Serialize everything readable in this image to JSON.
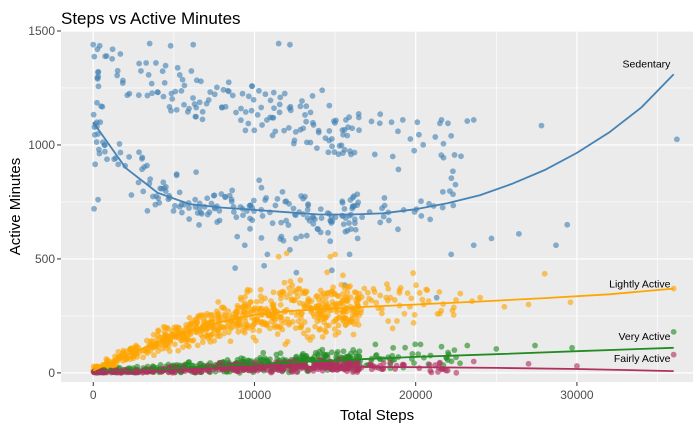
{
  "chart_data": {
    "type": "scatter",
    "title": "Steps vs Active Minutes",
    "xlabel": "Total Steps",
    "ylabel": "Active Minutes",
    "xlim": [
      -2000,
      37200
    ],
    "ylim": [
      -40,
      1500
    ],
    "xticks": [
      0,
      10000,
      20000,
      30000
    ],
    "yticks": [
      0,
      500,
      1000,
      1500
    ],
    "grid": true,
    "legend": "none",
    "series": [
      {
        "name": "Sedentary",
        "color": "#4682B4",
        "trend": [
          [
            0,
            1100
          ],
          [
            2000,
            900
          ],
          [
            4000,
            790
          ],
          [
            6000,
            740
          ],
          [
            8000,
            725
          ],
          [
            10000,
            715
          ],
          [
            12000,
            705
          ],
          [
            14000,
            695
          ],
          [
            16000,
            695
          ],
          [
            18000,
            700
          ],
          [
            20000,
            718
          ],
          [
            22000,
            745
          ],
          [
            24000,
            780
          ],
          [
            26000,
            830
          ],
          [
            28000,
            890
          ],
          [
            30000,
            965
          ],
          [
            32000,
            1055
          ],
          [
            34000,
            1165
          ],
          [
            36000,
            1310
          ]
        ],
        "label_at": [
          35800,
          1340
        ]
      },
      {
        "name": "Lightly Active",
        "color": "#FFA500",
        "trend": [
          [
            0,
            10
          ],
          [
            2000,
            75
          ],
          [
            4000,
            135
          ],
          [
            6000,
            185
          ],
          [
            8000,
            225
          ],
          [
            10000,
            255
          ],
          [
            12000,
            270
          ],
          [
            14000,
            280
          ],
          [
            16000,
            287
          ],
          [
            20000,
            300
          ],
          [
            24000,
            313
          ],
          [
            28000,
            328
          ],
          [
            32000,
            345
          ],
          [
            36000,
            370
          ]
        ],
        "label_at": [
          35800,
          375
        ]
      },
      {
        "name": "Very Active",
        "color": "#228B22",
        "trend": [
          [
            0,
            3
          ],
          [
            3000,
            12
          ],
          [
            6000,
            24
          ],
          [
            9000,
            35
          ],
          [
            12000,
            45
          ],
          [
            15000,
            55
          ],
          [
            20000,
            70
          ],
          [
            25000,
            82
          ],
          [
            30000,
            95
          ],
          [
            36000,
            110
          ]
        ],
        "label_at": [
          35800,
          145
        ]
      },
      {
        "name": "Fairly Active",
        "color": "#B03060",
        "trend": [
          [
            0,
            2
          ],
          [
            3000,
            8
          ],
          [
            6000,
            15
          ],
          [
            9000,
            22
          ],
          [
            12000,
            26
          ],
          [
            15000,
            27
          ],
          [
            20000,
            25
          ],
          [
            25000,
            22
          ],
          [
            30000,
            17
          ],
          [
            36000,
            8
          ]
        ],
        "label_at": [
          35800,
          48
        ]
      }
    ],
    "outliers": {
      "Sedentary": [
        [
          0,
          1440
        ],
        [
          400,
          1435
        ],
        [
          1200,
          1420
        ],
        [
          3500,
          1445
        ],
        [
          4800,
          1435
        ],
        [
          6200,
          1440
        ],
        [
          11500,
          1445
        ],
        [
          12200,
          1440
        ],
        [
          350,
          980
        ],
        [
          700,
          1000
        ],
        [
          120,
          915
        ],
        [
          50,
          720
        ],
        [
          300,
          760
        ],
        [
          14200,
          1240
        ],
        [
          13600,
          1215
        ],
        [
          17800,
          1135
        ],
        [
          18500,
          1100
        ],
        [
          19200,
          1110
        ],
        [
          20100,
          1100
        ],
        [
          21600,
          1110
        ],
        [
          22000,
          1095
        ],
        [
          23200,
          1105
        ],
        [
          23600,
          1110
        ],
        [
          27800,
          1085
        ],
        [
          36200,
          1025
        ],
        [
          14400,
          1030
        ],
        [
          15500,
          1045
        ],
        [
          18900,
          1060
        ],
        [
          21500,
          1095
        ],
        [
          20200,
          1045
        ],
        [
          22200,
          1040
        ],
        [
          17800,
          660
        ],
        [
          18900,
          630
        ],
        [
          23600,
          560
        ],
        [
          26400,
          610
        ],
        [
          28700,
          560
        ],
        [
          24700,
          590
        ],
        [
          29400,
          650
        ],
        [
          22200,
          520
        ],
        [
          21300,
          330
        ],
        [
          11800,
          580
        ],
        [
          12200,
          540
        ],
        [
          10600,
          470
        ],
        [
          9400,
          560
        ],
        [
          8800,
          460
        ],
        [
          15900,
          520
        ],
        [
          16400,
          590
        ],
        [
          10800,
          520
        ],
        [
          14800,
          450
        ],
        [
          15600,
          385
        ],
        [
          12600,
          440
        ]
      ],
      "Lightly Active": [
        [
          11500,
          510
        ],
        [
          12000,
          525
        ],
        [
          15000,
          520
        ],
        [
          14700,
          510
        ],
        [
          28000,
          435
        ],
        [
          29600,
          310
        ],
        [
          27000,
          300
        ],
        [
          24000,
          330
        ],
        [
          22500,
          320
        ],
        [
          20500,
          300
        ],
        [
          19000,
          295
        ],
        [
          25500,
          290
        ],
        [
          21500,
          260
        ],
        [
          18700,
          320
        ],
        [
          19500,
          350
        ],
        [
          17800,
          340
        ],
        [
          23500,
          315
        ],
        [
          36000,
          370
        ]
      ],
      "Very Active": [
        [
          36000,
          180
        ],
        [
          29700,
          110
        ],
        [
          27400,
          120
        ],
        [
          25000,
          105
        ],
        [
          23200,
          120
        ],
        [
          21600,
          115
        ],
        [
          22400,
          100
        ],
        [
          20300,
          125
        ],
        [
          18600,
          110
        ],
        [
          17500,
          125
        ]
      ],
      "Fairly Active": [
        [
          36000,
          80
        ],
        [
          30000,
          30
        ],
        [
          23600,
          50
        ],
        [
          21500,
          45
        ],
        [
          27000,
          40
        ],
        [
          19200,
          35
        ]
      ]
    }
  }
}
